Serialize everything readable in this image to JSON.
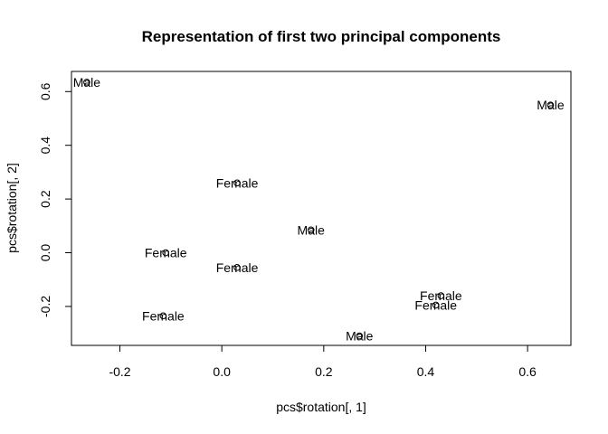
{
  "chart_data": {
    "type": "scatter",
    "title": "Representation of first two principal components",
    "xlabel": "pcs$rotation[, 1]",
    "ylabel": "pcs$rotation[, 2]",
    "xlim": [
      -0.295,
      0.685
    ],
    "ylim": [
      -0.345,
      0.675
    ],
    "xticks": [
      -0.2,
      0.0,
      0.2,
      0.4,
      0.6
    ],
    "xtick_labels": [
      "-0.2",
      "0.0",
      "0.2",
      "0.4",
      "0.6"
    ],
    "yticks": [
      -0.2,
      0.0,
      0.2,
      0.4,
      0.6
    ],
    "ytick_labels": [
      "-0.2",
      "0.0",
      "0.2",
      "0.4",
      "0.6"
    ],
    "grid": false,
    "marker": "open-circle",
    "points": [
      {
        "x": -0.265,
        "y": 0.635,
        "label": "Male"
      },
      {
        "x": 0.645,
        "y": 0.55,
        "label": "Male"
      },
      {
        "x": 0.03,
        "y": 0.26,
        "label": "Female"
      },
      {
        "x": 0.175,
        "y": 0.085,
        "label": "Male"
      },
      {
        "x": -0.11,
        "y": 0.0,
        "label": "Female"
      },
      {
        "x": 0.03,
        "y": -0.055,
        "label": "Female"
      },
      {
        "x": 0.43,
        "y": -0.16,
        "label": "Female"
      },
      {
        "x": 0.42,
        "y": -0.195,
        "label": "Female"
      },
      {
        "x": -0.115,
        "y": -0.235,
        "label": "Female"
      },
      {
        "x": 0.27,
        "y": -0.31,
        "label": "Male"
      }
    ]
  }
}
